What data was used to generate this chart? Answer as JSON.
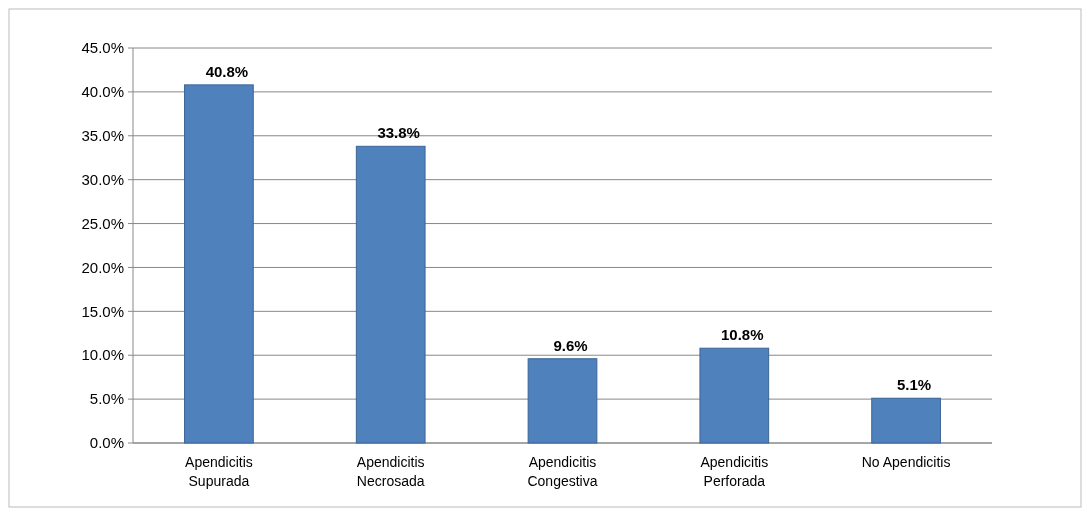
{
  "chart_data": {
    "type": "bar",
    "categories": [
      "Apendicitis Supurada",
      "Apendicitis Necrosada",
      "Apendicitis Congestiva",
      "Apendicitis Perforada",
      "No Apendicitis"
    ],
    "values": [
      40.8,
      33.8,
      9.6,
      10.8,
      5.1
    ],
    "value_labels": [
      "40.8%",
      "33.8%",
      "9.6%",
      "10.8%",
      "5.1%"
    ],
    "color": "#4f81bd",
    "ylim": [
      0,
      45
    ],
    "yticks": [
      {
        "value": 0,
        "label": "0.0%"
      },
      {
        "value": 5,
        "label": "5.0%"
      },
      {
        "value": 10,
        "label": "10.0%"
      },
      {
        "value": 15,
        "label": "15.0%"
      },
      {
        "value": 20,
        "label": "20.0%"
      },
      {
        "value": 25,
        "label": "25.0%"
      },
      {
        "value": 30,
        "label": "30.0%"
      },
      {
        "value": 35,
        "label": "35.0%"
      },
      {
        "value": 40,
        "label": "40.0%"
      },
      {
        "value": 45,
        "label": "45.0%"
      }
    ],
    "grid": "y"
  }
}
